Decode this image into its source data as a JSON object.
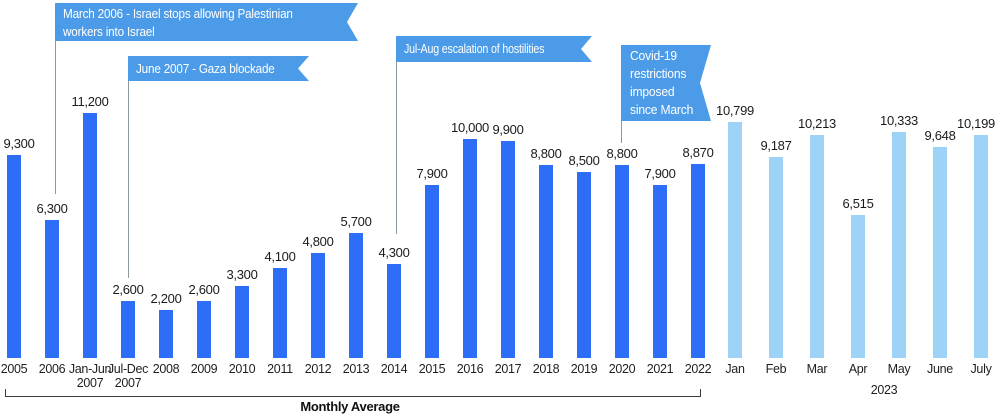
{
  "colors": {
    "bar_primary": "#2e6df5",
    "bar_secondary": "#9ed3f8",
    "banner_background": "#4c9be8",
    "banner_text": "#ffffff",
    "leader_line": "#8d989f"
  },
  "chart_data": {
    "type": "bar",
    "title": "",
    "xlabel": "",
    "ylabel": "",
    "ylim": [
      0,
      11200
    ],
    "grid": false,
    "legend": null,
    "groups": {
      "avg": {
        "label": "Monthly Average",
        "color": "#2e6df5"
      },
      "y2023": {
        "label": "2023",
        "color": "#9ed3f8"
      }
    },
    "bars": [
      {
        "label": "2005",
        "value": 9300,
        "display": "9,300",
        "group": "avg"
      },
      {
        "label": "2006",
        "value": 6300,
        "display": "6,300",
        "group": "avg"
      },
      {
        "label": "Jan-Jun",
        "sublabel": "2007",
        "value": 11200,
        "display": "11,200",
        "group": "avg"
      },
      {
        "label": "Jul-Dec",
        "sublabel": "2007",
        "value": 2600,
        "display": "2,600",
        "group": "avg"
      },
      {
        "label": "2008",
        "value": 2200,
        "display": "2,200",
        "group": "avg"
      },
      {
        "label": "2009",
        "value": 2600,
        "display": "2,600",
        "group": "avg"
      },
      {
        "label": "2010",
        "value": 3300,
        "display": "3,300",
        "group": "avg"
      },
      {
        "label": "2011",
        "value": 4100,
        "display": "4,100",
        "group": "avg"
      },
      {
        "label": "2012",
        "value": 4800,
        "display": "4,800",
        "group": "avg"
      },
      {
        "label": "2013",
        "value": 5700,
        "display": "5,700",
        "group": "avg"
      },
      {
        "label": "2014",
        "value": 4300,
        "display": "4,300",
        "group": "avg"
      },
      {
        "label": "2015",
        "value": 7900,
        "display": "7,900",
        "group": "avg"
      },
      {
        "label": "2016",
        "value": 10000,
        "display": "10,000",
        "group": "avg"
      },
      {
        "label": "2017",
        "value": 9900,
        "display": "9,900",
        "group": "avg"
      },
      {
        "label": "2018",
        "value": 8800,
        "display": "8,800",
        "group": "avg"
      },
      {
        "label": "2019",
        "value": 8500,
        "display": "8,500",
        "group": "avg"
      },
      {
        "label": "2020",
        "value": 8800,
        "display": "8,800",
        "group": "avg"
      },
      {
        "label": "2021",
        "value": 7900,
        "display": "7,900",
        "group": "avg"
      },
      {
        "label": "2022",
        "value": 8870,
        "display": "8,870",
        "group": "avg"
      },
      {
        "label": "Jan",
        "value": 10799,
        "display": "10,799",
        "group": "y2023"
      },
      {
        "label": "Feb",
        "value": 9187,
        "display": "9,187",
        "group": "y2023"
      },
      {
        "label": "Mar",
        "value": 10213,
        "display": "10,213",
        "group": "y2023"
      },
      {
        "label": "Apr",
        "value": 6515,
        "display": "6,515",
        "group": "y2023"
      },
      {
        "label": "May",
        "value": 10333,
        "display": "10,333",
        "group": "y2023"
      },
      {
        "label": "June",
        "value": 9648,
        "display": "9,648",
        "group": "y2023"
      },
      {
        "label": "July",
        "value": 10199,
        "display": "10,199",
        "group": "y2023"
      }
    ],
    "bracket_label": "Monthly Average",
    "right_group_label": "2023"
  },
  "annotations": [
    {
      "id": "march-2006",
      "text": "March 2006 - Israel stops allowing Palestinian\nworkers into Israel",
      "points_to": "2006"
    },
    {
      "id": "june-2007",
      "text": "June 2007 - Gaza blockade",
      "points_to": "Jul-Dec 2007"
    },
    {
      "id": "jul-aug",
      "text": "Jul-Aug escalation of hostilities",
      "points_to": "2014"
    },
    {
      "id": "covid",
      "text": "Covid-19\nrestrictions\nimposed\nsince March",
      "points_to": "2020"
    }
  ]
}
